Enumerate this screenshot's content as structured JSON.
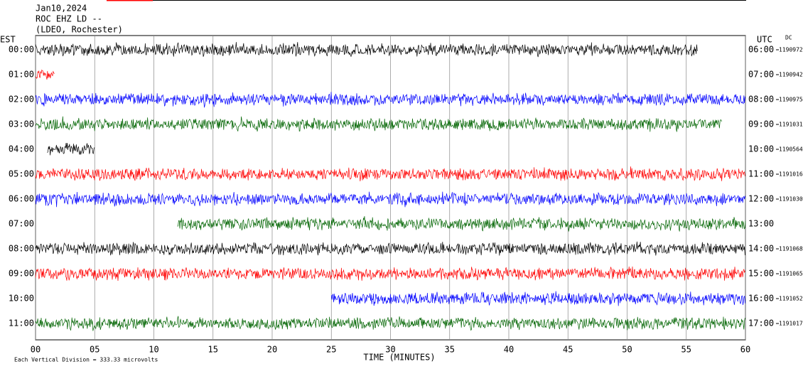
{
  "header": {
    "date": "Jan10,2024",
    "station": "ROC EHZ LD --",
    "network": "(LDEO, Rochester)"
  },
  "left_axis_label": "EST",
  "right_axis_label": "UTC",
  "right_corner": "DC",
  "x_axis": {
    "label": "TIME (MINUTES)",
    "xlim": [
      0,
      60
    ],
    "xticks": [
      {
        "value": 0,
        "label": "00"
      },
      {
        "value": 5,
        "label": "05"
      },
      10,
      15,
      20,
      25,
      30,
      35,
      40,
      45,
      50,
      55,
      60
    ]
  },
  "footer": "Each Vertical Division =  333.33 microvolts",
  "rows": [
    {
      "est": "00:00",
      "utc": "06:00",
      "value": "1190972",
      "color": "#000000",
      "trace": [
        0,
        56
      ]
    },
    {
      "est": "01:00",
      "utc": "07:00",
      "value": "1190942",
      "color": "#ff0000",
      "trace": [
        0,
        1.6
      ]
    },
    {
      "est": "02:00",
      "utc": "08:00",
      "value": "1190975",
      "color": "#0000ff",
      "trace": [
        0,
        60
      ]
    },
    {
      "est": "03:00",
      "utc": "09:00",
      "value": "1191031",
      "color": "#006400",
      "trace": [
        0,
        58
      ]
    },
    {
      "est": "04:00",
      "utc": "10:00",
      "value": "1190564",
      "color": "#000000",
      "trace": [
        1,
        5
      ]
    },
    {
      "est": "05:00",
      "utc": "11:00",
      "value": "1191016",
      "color": "#ff0000",
      "trace": [
        0,
        60
      ]
    },
    {
      "est": "06:00",
      "utc": "12:00",
      "value": "1191030",
      "color": "#0000ff",
      "trace": [
        0,
        60
      ]
    },
    {
      "est": "07:00",
      "utc": "13:00",
      "color": "#006400",
      "trace": [
        12,
        60
      ]
    },
    {
      "est": "08:00",
      "utc": "14:00",
      "value": "1191068",
      "color": "#000000",
      "trace": [
        0,
        60
      ]
    },
    {
      "est": "09:00",
      "utc": "15:00",
      "value": "1191065",
      "color": "#ff0000",
      "trace": [
        0,
        60
      ]
    },
    {
      "est": "10:00",
      "utc": "16:00",
      "value": "1191052",
      "color": "#0000ff",
      "trace": [
        25,
        60
      ]
    },
    {
      "est": "11:00",
      "utc": "17:00",
      "value": "1191017",
      "color": "#006400",
      "trace": [
        0,
        60
      ]
    }
  ]
}
